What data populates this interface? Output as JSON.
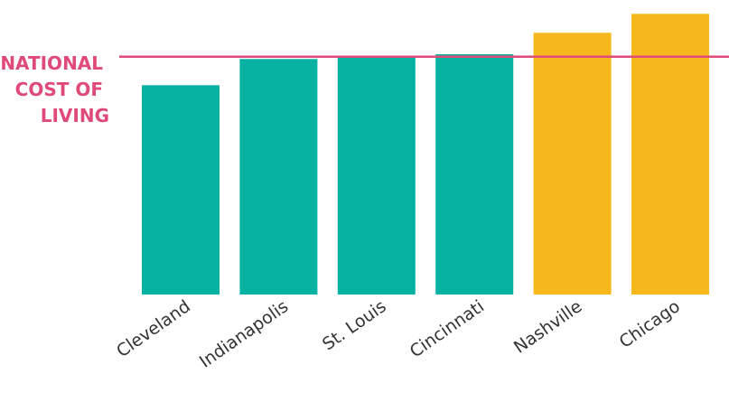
{
  "chart_data": {
    "type": "bar",
    "categories": [
      "Cleveland",
      "Indianapolis",
      "St. Louis",
      "Cincinnati",
      "Nashville",
      "Chicago"
    ],
    "values": [
      88,
      99,
      100,
      101,
      110,
      118
    ],
    "bar_colors": [
      "#07b2a2",
      "#07b2a2",
      "#07b2a2",
      "#07b2a2",
      "#f7b81c",
      "#f7b81c"
    ],
    "ylim": [
      0,
      120
    ],
    "grid": false,
    "reference_line": {
      "value": 100,
      "label_lines": [
        "NATIONAL",
        "COST OF",
        "LIVING"
      ],
      "color": "#e04a78"
    }
  }
}
